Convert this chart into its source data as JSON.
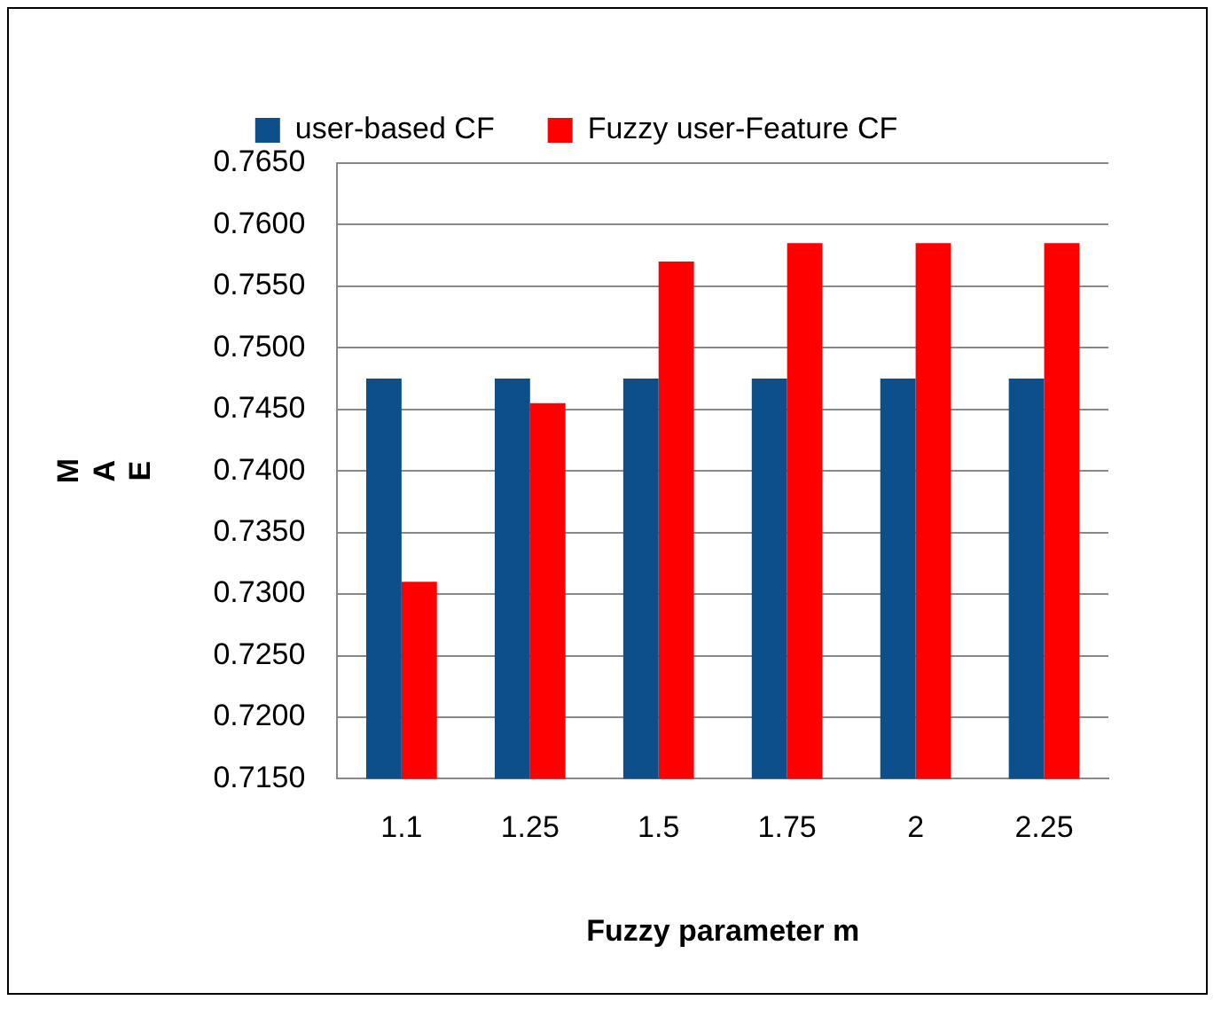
{
  "chart_data": {
    "type": "bar",
    "xlabel": "Fuzzy parameter m",
    "ylabel": "MAE",
    "categories": [
      "1.1",
      "1.25",
      "1.5",
      "1.75",
      "2",
      "2.25"
    ],
    "series": [
      {
        "name": "user-based CF",
        "color": "#0d4f8b",
        "values": [
          0.7475,
          0.7475,
          0.7475,
          0.7475,
          0.7475,
          0.7475
        ]
      },
      {
        "name": "Fuzzy user-Feature CF",
        "color": "#ff0000",
        "values": [
          0.731,
          0.7455,
          0.757,
          0.7585,
          0.7585,
          0.7585
        ]
      }
    ],
    "ylim": [
      0.715,
      0.765
    ],
    "yticks": [
      {
        "value": 0.715,
        "label": "0.7150"
      },
      {
        "value": 0.72,
        "label": "0.7200"
      },
      {
        "value": 0.725,
        "label": "0.7250"
      },
      {
        "value": 0.73,
        "label": "0.7300"
      },
      {
        "value": 0.735,
        "label": "0.7350"
      },
      {
        "value": 0.74,
        "label": "0.7400"
      },
      {
        "value": 0.745,
        "label": "0.7450"
      },
      {
        "value": 0.75,
        "label": "0.7500"
      },
      {
        "value": 0.755,
        "label": "0.7550"
      },
      {
        "value": 0.76,
        "label": "0.7600"
      },
      {
        "value": 0.765,
        "label": "0.7650"
      }
    ],
    "grid": "y",
    "legend": "top"
  }
}
